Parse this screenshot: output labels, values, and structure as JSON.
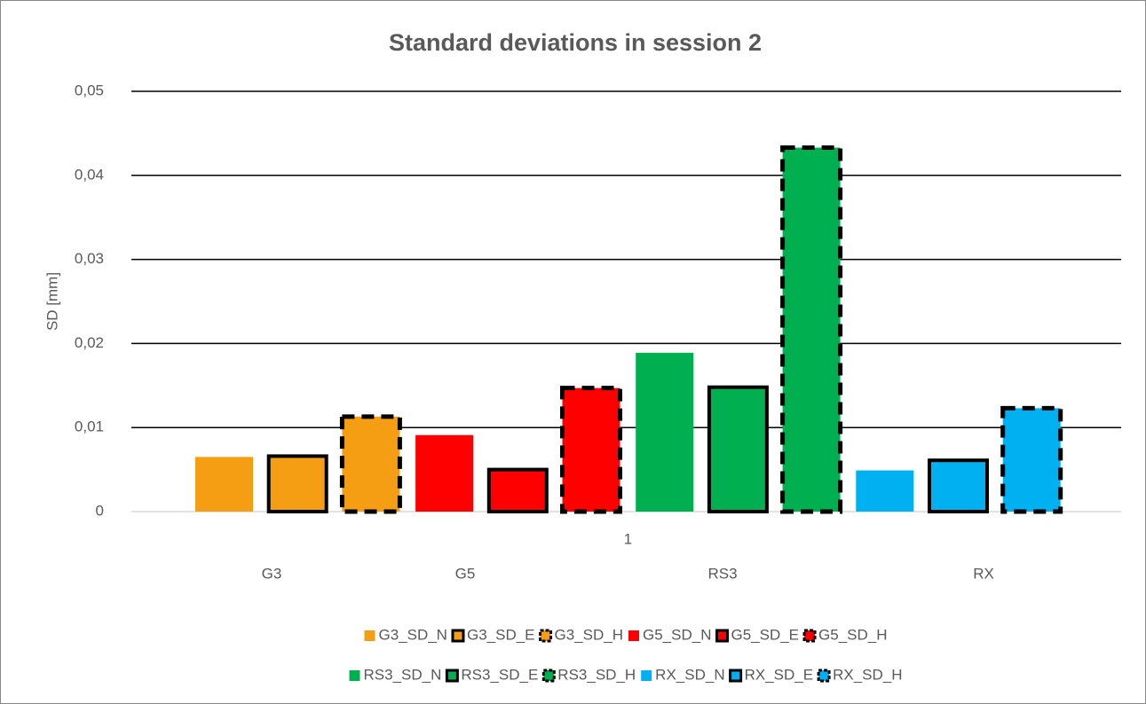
{
  "chart_data": {
    "type": "bar",
    "title": "Standard deviations in session 2",
    "y_label": "SD [mm]",
    "categories": [
      "1"
    ],
    "group_labels": [
      "G3",
      "G5",
      "RS3",
      "RX"
    ],
    "ylim": [
      0,
      0.05
    ],
    "yticks": [
      0,
      {
        "value": 0.01,
        "label": "0,01"
      },
      {
        "value": 0.02,
        "label": "0,02"
      },
      {
        "value": 0.03,
        "label": "0,03"
      },
      {
        "value": 0.04,
        "label": "0,04"
      },
      {
        "value": 0.05,
        "label": "0,05"
      }
    ],
    "grid": true,
    "legend": "bottom",
    "series": [
      {
        "name": "G3_SD_N",
        "color": "#f59e14",
        "border": "none",
        "values": [
          0.0065
        ]
      },
      {
        "name": "G3_SD_E",
        "color": "#f59e14",
        "border": "solid",
        "values": [
          0.0066
        ]
      },
      {
        "name": "G3_SD_H",
        "color": "#f59e14",
        "border": "dashed",
        "values": [
          0.0113
        ]
      },
      {
        "name": "G5_SD_N",
        "color": "#ff0000",
        "border": "none",
        "values": [
          0.0091
        ]
      },
      {
        "name": "G5_SD_E",
        "color": "#ff0000",
        "border": "solid",
        "values": [
          0.005
        ]
      },
      {
        "name": "G5_SD_H",
        "color": "#ff0000",
        "border": "dashed",
        "values": [
          0.0147
        ]
      },
      {
        "name": "RS3_SD_N",
        "color": "#00b050",
        "border": "none",
        "values": [
          0.0189
        ]
      },
      {
        "name": "RS3_SD_E",
        "color": "#00b050",
        "border": "solid",
        "values": [
          0.0148
        ]
      },
      {
        "name": "RS3_SD_H",
        "color": "#00b050",
        "border": "dashed",
        "values": [
          0.0433
        ]
      },
      {
        "name": "RX_SD_N",
        "color": "#00b0f0",
        "border": "none",
        "values": [
          0.0049
        ]
      },
      {
        "name": "RX_SD_E",
        "color": "#00b0f0",
        "border": "solid",
        "values": [
          0.0061
        ]
      },
      {
        "name": "RX_SD_H",
        "color": "#00b0f0",
        "border": "dashed",
        "values": [
          0.0123
        ]
      }
    ]
  }
}
